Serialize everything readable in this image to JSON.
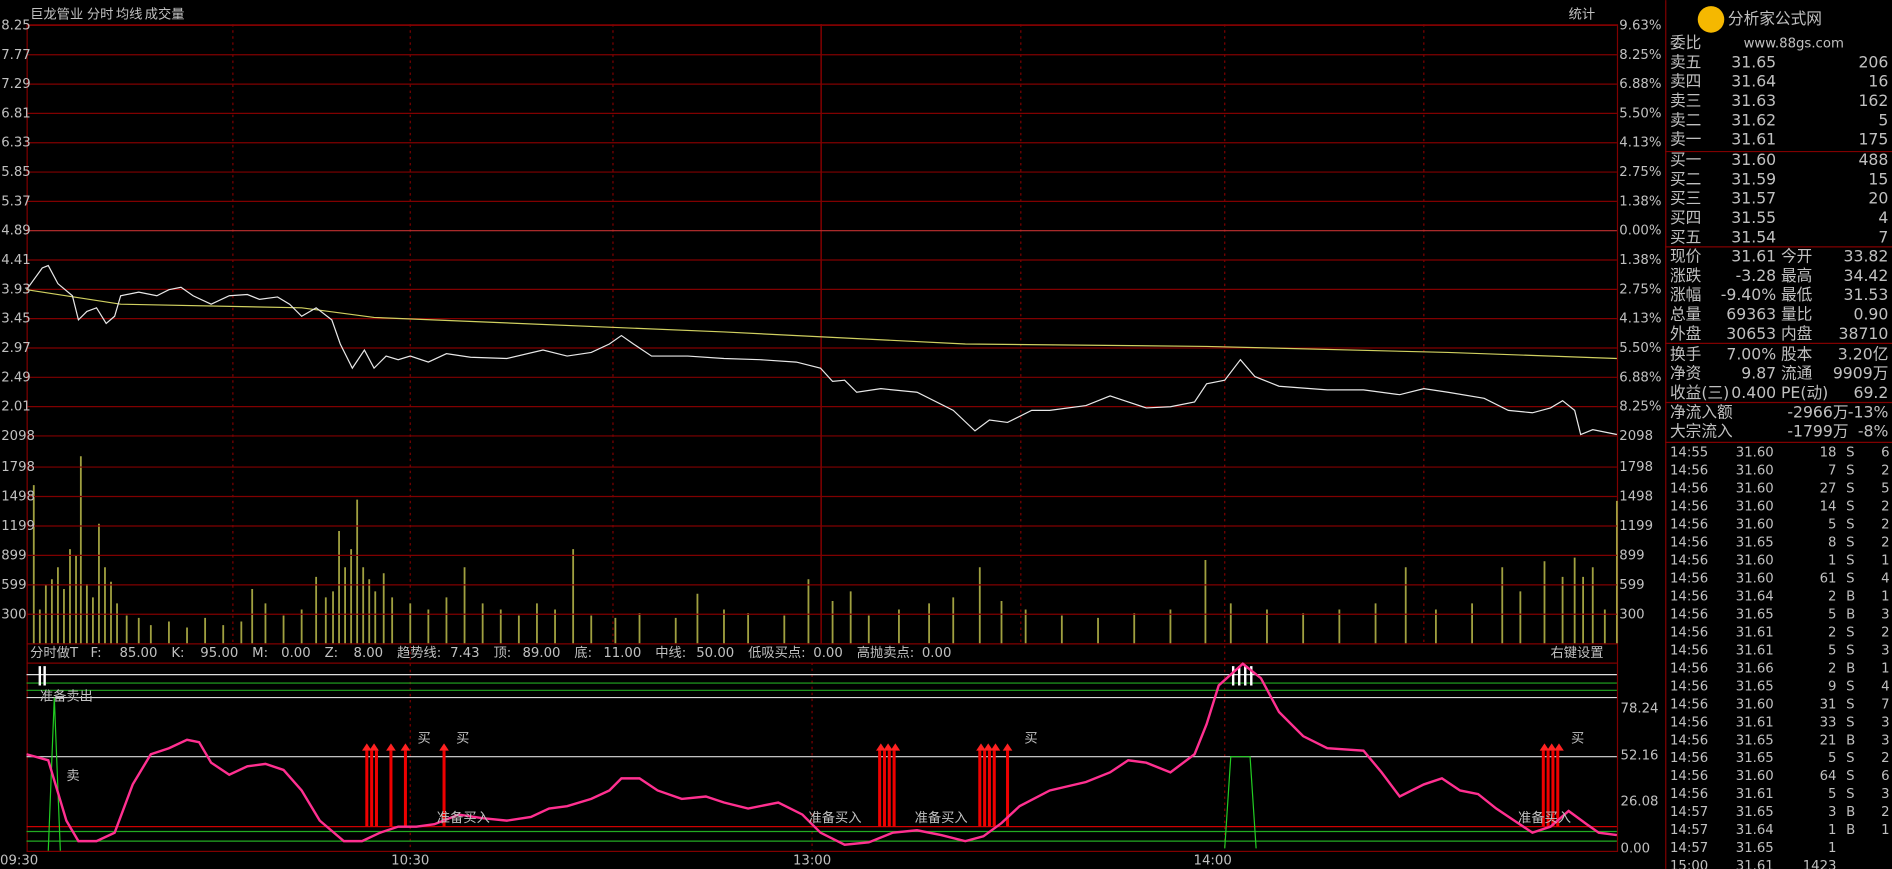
{
  "header": {
    "stock": "巨龙管业",
    "tabs": [
      "分时",
      "均线",
      "成交量"
    ],
    "stat": "统计"
  },
  "left_axis": [
    "8.25",
    "7.77",
    "7.29",
    "6.81",
    "6.33",
    "5.85",
    "5.37",
    "4.89",
    "4.41",
    "3.93",
    "3.45",
    "2.97",
    "2.49",
    "2.01",
    "2098"
  ],
  "right_axis": [
    "9.63%",
    "8.25%",
    "6.88%",
    "5.50%",
    "4.13%",
    "2.75%",
    "1.38%",
    "0.00%",
    "1.38%",
    "2.75%",
    "4.13%",
    "5.50%",
    "6.88%",
    "8.25%",
    "2098"
  ],
  "volume_axis": [
    "1798",
    "1498",
    "1199",
    "899",
    "599",
    "300"
  ],
  "indicator": {
    "name": "分时做T",
    "params": [
      {
        "label": "F:",
        "value": "85.00"
      },
      {
        "label": "K:",
        "value": "95.00"
      },
      {
        "label": "M:",
        "value": "0.00"
      },
      {
        "label": "Z:",
        "value": "8.00"
      },
      {
        "label": "趋势线:",
        "value": "7.43"
      },
      {
        "label": "顶:",
        "value": "89.00"
      },
      {
        "label": "底:",
        "value": "11.00"
      },
      {
        "label": "中线:",
        "value": "50.00"
      },
      {
        "label": "低吸买点:",
        "value": "0.00"
      },
      {
        "label": "高抛卖点:",
        "value": "0.00"
      }
    ],
    "setting": "右键设置",
    "axis": [
      "78.24",
      "52.16",
      "26.08",
      "0.00"
    ],
    "ready_sell": "准备卖出",
    "sell": "卖",
    "buy": "买",
    "ready_buy": "准备买入"
  },
  "time_axis": [
    "09:30",
    "10:30",
    "13:00",
    "14:00"
  ],
  "logo": {
    "name": "分析家公式网",
    "url": "www.88gs.com"
  },
  "order_book": {
    "title": "委比",
    "rows": [
      [
        "卖五",
        "31.65",
        "206"
      ],
      [
        "卖四",
        "31.64",
        "16"
      ],
      [
        "卖三",
        "31.63",
        "162"
      ],
      [
        "卖二",
        "31.62",
        "5"
      ],
      [
        "卖一",
        "31.61",
        "175"
      ],
      [
        "买一",
        "31.60",
        "488"
      ],
      [
        "买二",
        "31.59",
        "15"
      ],
      [
        "买三",
        "31.57",
        "20"
      ],
      [
        "买四",
        "31.55",
        "4"
      ],
      [
        "买五",
        "31.54",
        "7"
      ]
    ]
  },
  "quote": [
    [
      "现价",
      "31.61",
      "今开",
      "33.82"
    ],
    [
      "涨跌",
      "-3.28",
      "最高",
      "34.42"
    ],
    [
      "涨幅",
      "-9.40%",
      "最低",
      "31.53"
    ],
    [
      "总量",
      "69363",
      "量比",
      "0.90"
    ],
    [
      "外盘",
      "30653",
      "内盘",
      "38710"
    ],
    [
      "换手",
      "7.00%",
      "股本",
      "3.20亿"
    ],
    [
      "净资",
      "9.87",
      "流通",
      "9909万"
    ],
    [
      "收益(三)",
      "0.400",
      "PE(动)",
      "69.2"
    ]
  ],
  "flow": [
    [
      "净流入额",
      "-2966万",
      "-13%"
    ],
    [
      "大宗流入",
      "-1799万",
      "-8%"
    ]
  ],
  "trades": [
    [
      "14:55",
      "31.60",
      "18",
      "S",
      "6"
    ],
    [
      "14:56",
      "31.60",
      "7",
      "S",
      "2"
    ],
    [
      "14:56",
      "31.60",
      "27",
      "S",
      "5"
    ],
    [
      "14:56",
      "31.60",
      "14",
      "S",
      "2"
    ],
    [
      "14:56",
      "31.60",
      "5",
      "S",
      "2"
    ],
    [
      "14:56",
      "31.65",
      "8",
      "S",
      "2"
    ],
    [
      "14:56",
      "31.60",
      "1",
      "S",
      "1"
    ],
    [
      "14:56",
      "31.60",
      "61",
      "S",
      "4"
    ],
    [
      "14:56",
      "31.64",
      "2",
      "B",
      "1"
    ],
    [
      "14:56",
      "31.65",
      "5",
      "B",
      "3"
    ],
    [
      "14:56",
      "31.61",
      "2",
      "S",
      "2"
    ],
    [
      "14:56",
      "31.61",
      "5",
      "S",
      "3"
    ],
    [
      "14:56",
      "31.66",
      "2",
      "B",
      "1"
    ],
    [
      "14:56",
      "31.65",
      "9",
      "S",
      "4"
    ],
    [
      "14:56",
      "31.60",
      "31",
      "S",
      "7"
    ],
    [
      "14:56",
      "31.61",
      "33",
      "S",
      "3"
    ],
    [
      "14:56",
      "31.65",
      "21",
      "B",
      "3"
    ],
    [
      "14:56",
      "31.65",
      "5",
      "S",
      "2"
    ],
    [
      "14:56",
      "31.60",
      "64",
      "S",
      "6"
    ],
    [
      "14:56",
      "31.61",
      "5",
      "S",
      "3"
    ],
    [
      "14:57",
      "31.65",
      "3",
      "B",
      "2"
    ],
    [
      "14:57",
      "31.64",
      "1",
      "B",
      "1"
    ],
    [
      "14:57",
      "31.65",
      "1",
      "",
      ""
    ],
    [
      "15:00",
      "31.61",
      "1423",
      "",
      ""
    ]
  ]
}
